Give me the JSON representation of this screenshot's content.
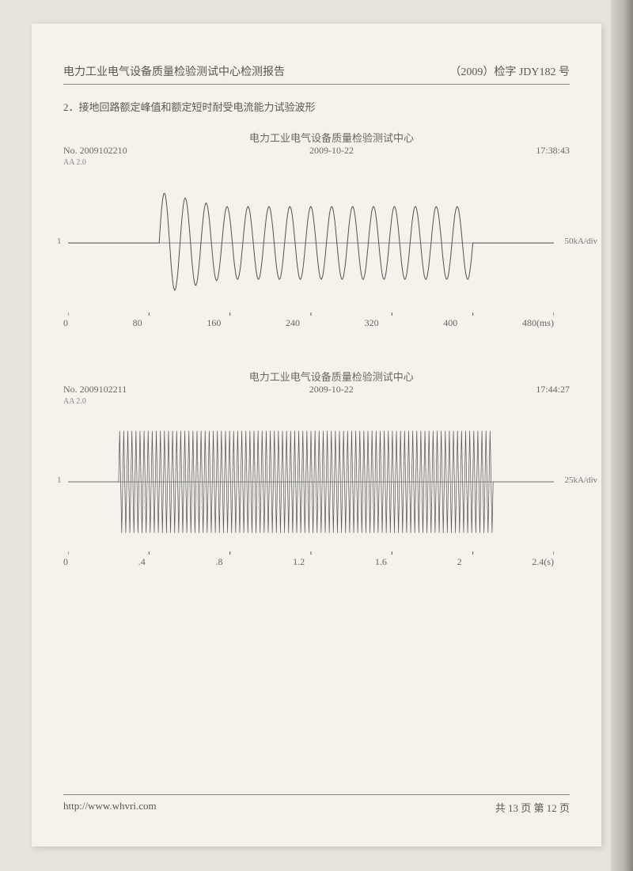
{
  "header": {
    "left": "电力工业电气设备质量检验测试中心检测报告",
    "right": "（2009）检字 JDY182 号"
  },
  "section_title": "2．接地回路额定峰值和额定短时耐受电流能力试验波形",
  "chart1": {
    "type": "line",
    "no": "No. 2009102210",
    "center_title": "电力工业电气设备质量检验测试中心",
    "date": "2009-10-22",
    "time": "17:38:43",
    "top_left_cap": "AA 2.0",
    "y_channel_label": "1",
    "y_scale_label": "50kA/div",
    "x_ticks": [
      "0",
      "80",
      "160",
      "240",
      "320",
      "400",
      "480"
    ],
    "x_unit": "(ms)",
    "line_color": "#555555",
    "background_color": "#f5f2ec",
    "waveform": {
      "flat_before_ms": 90,
      "flat_after_ms": 400,
      "cycles": 15,
      "first_peak_amplitude_div": 1.4,
      "steady_amplitude_div": 1.0,
      "decay_cycles": 3,
      "line_width": 1
    },
    "xlim": [
      0,
      480
    ],
    "ylim_div": [
      -2,
      2
    ]
  },
  "chart2": {
    "type": "line",
    "no": "No. 2009102211",
    "center_title": "电力工业电气设备质量检验测试中心",
    "date": "2009-10-22",
    "time": "17:44:27",
    "top_left_cap": "AA 2.0",
    "y_channel_label": "1",
    "y_scale_label": "25kA/div",
    "x_ticks": [
      "0",
      ".4",
      ".8",
      "1.2",
      "1.6",
      "2",
      "2.4"
    ],
    "x_unit": "(s)",
    "line_color": "#555555",
    "background_color": "#f5f2ec",
    "waveform": {
      "flat_before_s": 0.25,
      "flat_after_s": 2.1,
      "cycles": 92,
      "amplitude_div": 1.4,
      "line_width": 0.7
    },
    "xlim": [
      0,
      2.4
    ],
    "ylim_div": [
      -2,
      2
    ]
  },
  "footer": {
    "url": "http://www.whvri.com",
    "paging": "共 13 页  第 12 页"
  }
}
